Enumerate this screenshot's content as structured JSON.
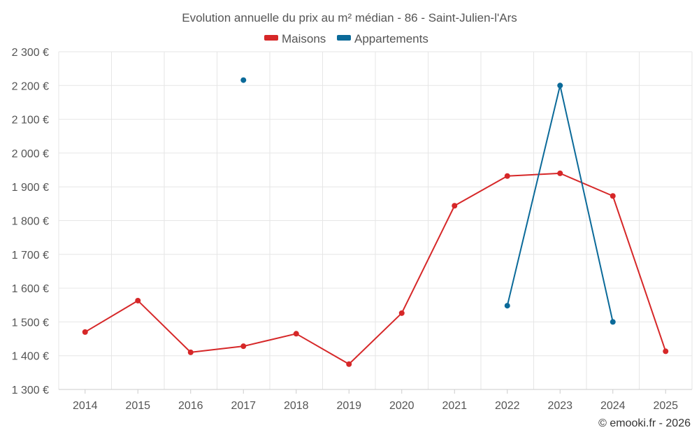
{
  "chart_data": {
    "type": "line",
    "title": "Evolution annuelle du prix au m² médian - 86 - Saint-Julien-l'Ars",
    "categories": [
      "2014",
      "2015",
      "2016",
      "2017",
      "2018",
      "2019",
      "2020",
      "2021",
      "2022",
      "2023",
      "2024",
      "2025"
    ],
    "ylim": [
      1300,
      2300
    ],
    "ytick_step": 100,
    "y_tick_labels": [
      "1 300 €",
      "1 400 €",
      "1 500 €",
      "1 600 €",
      "1 700 €",
      "1 800 €",
      "1 900 €",
      "2 000 €",
      "2 100 €",
      "2 200 €",
      "2 300 €"
    ],
    "grid": true,
    "legend_position": "top-center",
    "series": [
      {
        "name": "Maisons",
        "color": "#d62728",
        "values": [
          1470,
          1563,
          1410,
          1428,
          1465,
          1375,
          1526,
          1844,
          1932,
          1940,
          1873,
          1413
        ]
      },
      {
        "name": "Appartements",
        "color": "#0b6a99",
        "values": [
          null,
          null,
          null,
          2216,
          null,
          null,
          null,
          null,
          1548,
          2200,
          1500,
          null
        ]
      }
    ],
    "credit": "© emooki.fr - 2026"
  }
}
